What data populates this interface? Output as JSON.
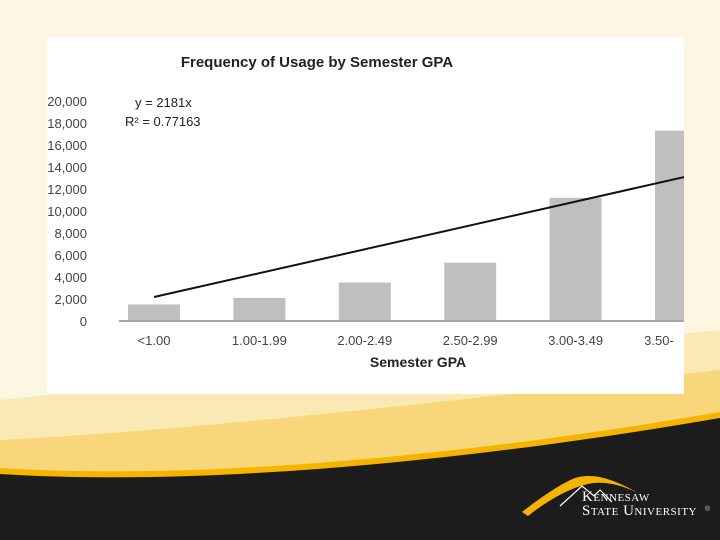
{
  "chart_data": {
    "type": "bar",
    "title": "Frequency of Usage by Semester GPA",
    "xlabel": "Semester GPA",
    "ylabel": "",
    "ylim": [
      0,
      20000
    ],
    "yticks": [
      "0",
      "2,000",
      "4,000",
      "6,000",
      "8,000",
      "10,000",
      "12,000",
      "14,000",
      "16,000",
      "18,000",
      "20,000"
    ],
    "categories": [
      "<1.00",
      "1.00-1.99",
      "2.00-2.49",
      "2.50-2.99",
      "3.00-3.49",
      "3.50-"
    ],
    "values": [
      1500,
      2100,
      3500,
      5300,
      11200,
      17300
    ],
    "trendline": {
      "equation": "y = 2181x",
      "r_squared": "R² = 0.77163",
      "start_value": 2181,
      "end_value": 13086
    },
    "grid": false,
    "bar_color": "#bfbfbf"
  },
  "branding": {
    "university_line1": "Kennesaw",
    "university_line2": "State University",
    "registered": "®",
    "gold": "#f4b400",
    "dark": "#1c1c1c"
  }
}
